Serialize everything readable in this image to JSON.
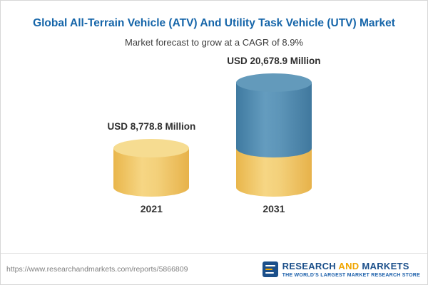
{
  "chart_data": {
    "type": "bar",
    "subtype": "cylinder-3d",
    "title": "Global All-Terrain Vehicle (ATV) And Utility Task Vehicle (UTV) Market",
    "subtitle": "Market forecast to grow at a CAGR of 8.9%",
    "categories": [
      "2021",
      "2031"
    ],
    "values": [
      8778.8,
      20678.9
    ],
    "value_labels": [
      "USD 8,778.8 Million",
      "USD 20,678.9 Million"
    ],
    "unit": "USD Million",
    "cagr_percent": 8.9,
    "ylim": [
      0,
      20678.9
    ],
    "grid": false,
    "legend": "none",
    "colors": {
      "base_segment": "#F0C75E",
      "growth_segment": "#4E89B4",
      "title_text": "#1565A9"
    },
    "notes": "2031 bar is stacked: bottom yellow segment equals 2021 value, top blue segment is growth portion"
  },
  "footer": {
    "url": "https://www.researchandmarkets.com/reports/5866809",
    "logo": {
      "word1": "RESEARCH",
      "word2": "AND",
      "word3": "MARKETS",
      "tagline": "THE WORLD'S LARGEST MARKET RESEARCH STORE",
      "brand_blue": "#1B4F8A",
      "brand_gold": "#F0A500"
    }
  }
}
